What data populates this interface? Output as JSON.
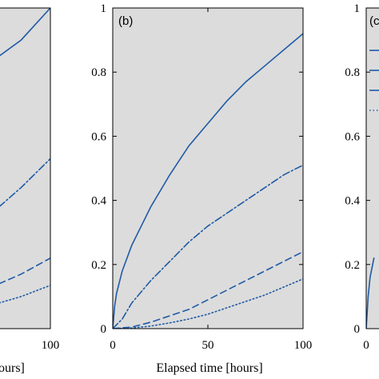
{
  "colors": {
    "plot_bg": "#dcdcdc",
    "line": "#1f5aa6",
    "axis": "#000000",
    "page_bg": "#ffffff"
  },
  "chart_data": [
    {
      "type": "line",
      "panel": "a (cropped)",
      "x_tick_labels": [
        "100"
      ],
      "xlabel_fragment": "ours]",
      "xlim": [
        0,
        100
      ],
      "ylim": [
        0,
        1
      ],
      "series": [
        {
          "style": "solid",
          "x": [
            65,
            80,
            100
          ],
          "y": [
            0.85,
            0.9,
            1.0
          ]
        },
        {
          "style": "dashdot",
          "x": [
            65,
            80,
            100
          ],
          "y": [
            0.38,
            0.44,
            0.53
          ]
        },
        {
          "style": "dashed",
          "x": [
            65,
            80,
            100
          ],
          "y": [
            0.14,
            0.17,
            0.22
          ]
        },
        {
          "style": "dotted",
          "x": [
            65,
            80,
            100
          ],
          "y": [
            0.08,
            0.1,
            0.135
          ]
        }
      ]
    },
    {
      "type": "line",
      "panel": "b",
      "panel_label": "(b)",
      "xlabel": "Elapsed time [hours]",
      "x_ticks": [
        0,
        50,
        100
      ],
      "x_tick_labels": [
        "0",
        "50",
        "100"
      ],
      "y_ticks": [
        0,
        0.2,
        0.4,
        0.6,
        0.8,
        1
      ],
      "y_tick_labels": [
        "0",
        "0.2",
        "0.4",
        "0.6",
        "0.8",
        "1"
      ],
      "xlim": [
        0,
        100
      ],
      "ylim": [
        0,
        1
      ],
      "grid": false,
      "series": [
        {
          "style": "solid",
          "x": [
            0,
            1,
            2,
            5,
            10,
            15,
            20,
            30,
            40,
            50,
            60,
            70,
            80,
            90,
            100
          ],
          "y": [
            0,
            0.07,
            0.11,
            0.18,
            0.26,
            0.32,
            0.38,
            0.48,
            0.57,
            0.64,
            0.71,
            0.77,
            0.82,
            0.87,
            0.92
          ]
        },
        {
          "style": "dashdot",
          "x": [
            0,
            5,
            10,
            20,
            30,
            40,
            50,
            60,
            70,
            80,
            90,
            100
          ],
          "y": [
            0,
            0.03,
            0.08,
            0.15,
            0.21,
            0.27,
            0.32,
            0.36,
            0.4,
            0.44,
            0.48,
            0.51
          ]
        },
        {
          "style": "dashed",
          "x": [
            0,
            10,
            20,
            30,
            40,
            50,
            60,
            70,
            80,
            90,
            100
          ],
          "y": [
            0,
            0.005,
            0.02,
            0.04,
            0.06,
            0.09,
            0.12,
            0.15,
            0.18,
            0.21,
            0.24
          ]
        },
        {
          "style": "dotted",
          "x": [
            0,
            10,
            20,
            30,
            40,
            50,
            60,
            70,
            80,
            90,
            100
          ],
          "y": [
            0,
            0.002,
            0.008,
            0.018,
            0.03,
            0.045,
            0.065,
            0.085,
            0.105,
            0.13,
            0.155
          ]
        }
      ]
    },
    {
      "type": "line",
      "panel": "c (cropped)",
      "panel_label_fragment": "(c",
      "y_ticks": [
        0,
        0.2,
        0.4,
        0.6,
        0.8,
        1
      ],
      "y_tick_labels": [
        "0",
        "0.2",
        "0.4",
        "0.6",
        "0.8",
        "1"
      ],
      "x_tick_labels": [
        "0"
      ],
      "xlim": [
        0,
        100
      ],
      "ylim": [
        0,
        1
      ],
      "series": [
        {
          "style": "solid",
          "x": [
            0,
            1,
            2,
            3,
            4
          ],
          "y": [
            0,
            0.1,
            0.16,
            0.19,
            0.22
          ]
        }
      ]
    }
  ]
}
